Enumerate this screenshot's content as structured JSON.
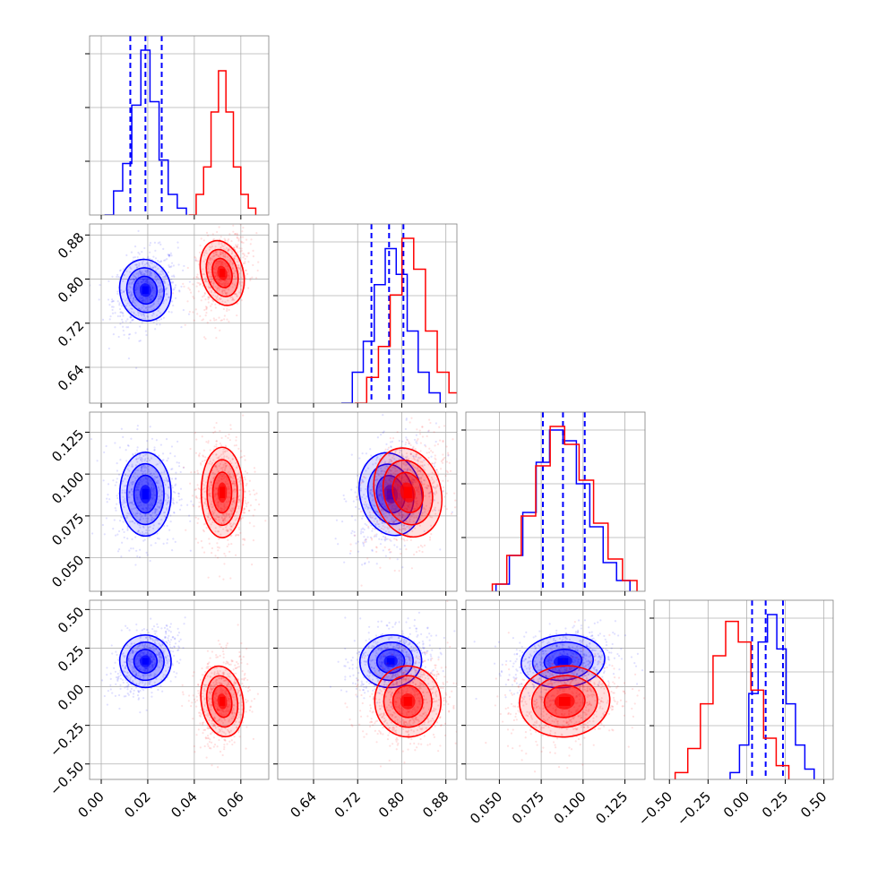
{
  "chart_data": {
    "type": "corner",
    "parameters": 4,
    "grid": true,
    "colors": {
      "series_a": "#0000ff",
      "series_b": "#ff0000",
      "grid": "#b0b0b0",
      "frame": "#808080"
    },
    "series": [
      {
        "color": "#0000ff",
        "means": [
          0.019,
          0.78,
          0.088,
          0.165
        ],
        "sds": [
          0.0055,
          0.028,
          0.0125,
          0.085
        ],
        "quantiles": [
          [
            0.0125,
            0.019,
            0.026
          ],
          [
            0.745,
            0.777,
            0.803
          ],
          [
            0.076,
            0.088,
            0.101
          ],
          [
            0.035,
            0.123,
            0.235
          ]
        ],
        "histograms": [
          [
            0.0,
            0.7,
            1.5,
            3.2,
            4.8,
            3.3,
            1.6,
            0.6,
            0.2
          ],
          [
            0.0,
            0.6,
            1.2,
            2.3,
            3.0,
            2.5,
            1.4,
            0.6,
            0.2
          ],
          [
            0.2,
            1.0,
            2.2,
            3.6,
            4.5,
            4.2,
            3.0,
            1.8,
            0.8,
            0.3
          ],
          [
            0.2,
            1.0,
            2.5,
            4.0,
            4.8,
            3.8,
            2.2,
            1.0,
            0.3
          ]
        ],
        "correlations": {
          "0-1": 0.25,
          "0-2": 0.0,
          "1-2": 0.3,
          "0-3": 0.45,
          "1-3": 0.2,
          "2-3": 0.25
        }
      },
      {
        "color": "#ff0000",
        "means": [
          0.052,
          0.811,
          0.089,
          -0.095
        ],
        "sds": [
          0.0045,
          0.03,
          0.0135,
          0.115
        ],
        "quantiles": [],
        "histograms": [
          [
            0.0,
            0.6,
            1.4,
            3.0,
            4.2,
            3.0,
            1.4,
            0.6,
            0.2
          ],
          [
            0.0,
            0.5,
            1.1,
            2.1,
            3.2,
            2.6,
            1.4,
            0.6,
            0.2
          ],
          [
            0.2,
            1.0,
            2.1,
            3.5,
            4.6,
            4.1,
            3.1,
            1.9,
            0.9,
            0.3
          ],
          [
            0.2,
            0.9,
            2.2,
            3.6,
            4.6,
            4.0,
            2.6,
            1.2,
            0.4
          ]
        ],
        "correlations": {
          "0-1": 0.3,
          "0-2": 0.0,
          "1-2": 0.35,
          "0-3": 0.15,
          "1-3": 0.15,
          "2-3": 0.2
        }
      }
    ],
    "axes": [
      {
        "range": [
          -0.005,
          0.072
        ],
        "ticks": [
          0.0,
          0.02,
          0.04,
          0.06
        ],
        "tick_labels": [
          "0.00",
          "0.02",
          "0.04",
          "0.06"
        ]
      },
      {
        "range": [
          0.575,
          0.9
        ],
        "ticks": [
          0.64,
          0.72,
          0.8,
          0.88
        ],
        "tick_labels": [
          "0.64",
          "0.72",
          "0.80",
          "0.88"
        ]
      },
      {
        "range": [
          0.03,
          0.137
        ],
        "ticks": [
          0.05,
          0.075,
          0.1,
          0.125
        ],
        "tick_labels": [
          "0.050",
          "0.075",
          "0.100",
          "0.125"
        ]
      },
      {
        "range": [
          -0.6,
          0.56
        ],
        "ticks": [
          -0.5,
          -0.25,
          0.0,
          0.25,
          0.5
        ],
        "tick_labels": [
          "−0.50",
          "−0.25",
          "0.00",
          "0.25",
          "0.50"
        ]
      }
    ]
  }
}
